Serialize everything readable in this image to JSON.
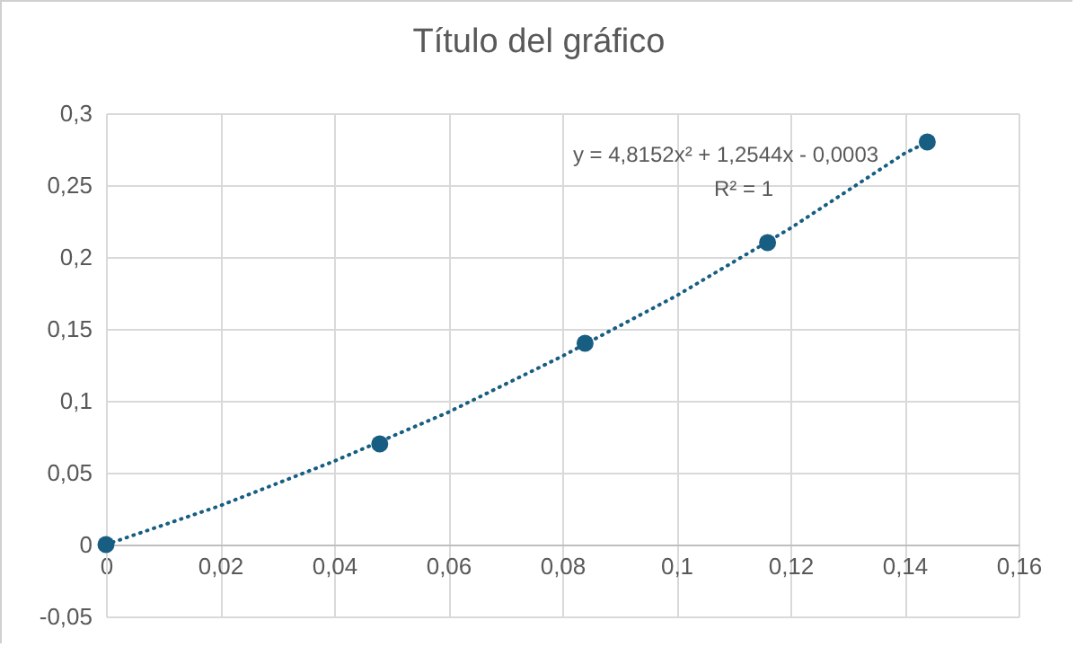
{
  "chart_data": {
    "type": "scatter",
    "title": "Título del gráfico",
    "annotations": [
      "y = 4,8152x² + 1,2544x - 0,0003",
      "R² = 1"
    ],
    "xlim": [
      0,
      0.16
    ],
    "xticks": [
      0,
      {
        "value": 0.02,
        "label": "0,02"
      },
      {
        "value": 0.04,
        "label": "0,04"
      },
      {
        "value": 0.06,
        "label": "0,06"
      },
      {
        "value": 0.08,
        "label": "0,08"
      },
      {
        "value": 0.1,
        "label": "0,1"
      },
      {
        "value": 0.12,
        "label": "0,12"
      },
      {
        "value": 0.14,
        "label": "0,14"
      },
      {
        "value": 0.16,
        "label": "0,16"
      }
    ],
    "ylim": [
      -0.05,
      0.3
    ],
    "yticks": [
      {
        "value": -0.05,
        "label": "-0,05"
      },
      0,
      {
        "value": 0.05,
        "label": "0,05"
      },
      {
        "value": 0.1,
        "label": "0,1"
      },
      {
        "value": 0.15,
        "label": "0,15"
      },
      {
        "value": 0.2,
        "label": "0,2"
      },
      {
        "value": 0.25,
        "label": "0,25"
      },
      {
        "value": 0.3,
        "label": "0,3"
      }
    ],
    "grid": true,
    "series": [
      {
        "color": "#175e82",
        "marker": "circle",
        "x": [
          0,
          0.048,
          0.084,
          0.116,
          0.144
        ],
        "values": [
          0,
          0.07,
          0.14,
          0.21,
          0.28
        ]
      },
      {
        "type": "line",
        "color": "#175e82",
        "marker": "none",
        "line_style": "dotted",
        "x": [
          0,
          0.02,
          0.04,
          0.06,
          0.08,
          0.1,
          0.12,
          0.14,
          0.144
        ],
        "values": [
          0,
          0.027,
          0.058,
          0.092,
          0.131,
          0.173,
          0.22,
          0.272,
          0.28
        ]
      }
    ]
  }
}
